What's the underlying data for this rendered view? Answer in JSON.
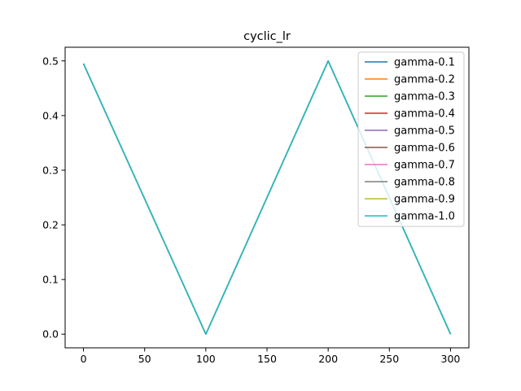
{
  "chart_data": {
    "type": "line",
    "title": "cyclic_lr",
    "xlabel": "",
    "ylabel": "",
    "xlim": [
      -15,
      315
    ],
    "ylim": [
      -0.025,
      0.525
    ],
    "x_ticks": [
      0,
      50,
      100,
      150,
      200,
      250,
      300
    ],
    "y_ticks": [
      0.0,
      0.1,
      0.2,
      0.3,
      0.4,
      0.5
    ],
    "x_tick_labels": [
      "0",
      "50",
      "100",
      "150",
      "200",
      "250",
      "300"
    ],
    "y_tick_labels": [
      "0.0",
      "0.1",
      "0.2",
      "0.3",
      "0.4",
      "0.5"
    ],
    "grid": false,
    "legend_position": "top-right",
    "series": [
      {
        "name": "gamma-0.1",
        "color": "#1f77b4",
        "x": [
          0,
          100,
          200,
          300
        ],
        "y": [
          0.495,
          0.0,
          0.5,
          0.0
        ]
      },
      {
        "name": "gamma-0.2",
        "color": "#ff7f0e",
        "x": [
          0,
          100,
          200,
          300
        ],
        "y": [
          0.495,
          0.0,
          0.5,
          0.0
        ]
      },
      {
        "name": "gamma-0.3",
        "color": "#2ca02c",
        "x": [
          0,
          100,
          200,
          300
        ],
        "y": [
          0.495,
          0.0,
          0.5,
          0.0
        ]
      },
      {
        "name": "gamma-0.4",
        "color": "#d62728",
        "x": [
          0,
          100,
          200,
          300
        ],
        "y": [
          0.495,
          0.0,
          0.5,
          0.0
        ]
      },
      {
        "name": "gamma-0.5",
        "color": "#9467bd",
        "x": [
          0,
          100,
          200,
          300
        ],
        "y": [
          0.495,
          0.0,
          0.5,
          0.0
        ]
      },
      {
        "name": "gamma-0.6",
        "color": "#8c564b",
        "x": [
          0,
          100,
          200,
          300
        ],
        "y": [
          0.495,
          0.0,
          0.5,
          0.0
        ]
      },
      {
        "name": "gamma-0.7",
        "color": "#e377c2",
        "x": [
          0,
          100,
          200,
          300
        ],
        "y": [
          0.495,
          0.0,
          0.5,
          0.0
        ]
      },
      {
        "name": "gamma-0.8",
        "color": "#7f7f7f",
        "x": [
          0,
          100,
          200,
          300
        ],
        "y": [
          0.495,
          0.0,
          0.5,
          0.0
        ]
      },
      {
        "name": "gamma-0.9",
        "color": "#bcbd22",
        "x": [
          0,
          100,
          200,
          300
        ],
        "y": [
          0.495,
          0.0,
          0.5,
          0.0
        ]
      },
      {
        "name": "gamma-1.0",
        "color": "#17becf",
        "x": [
          0,
          100,
          200,
          300
        ],
        "y": [
          0.495,
          0.0,
          0.5,
          0.0
        ]
      }
    ]
  }
}
